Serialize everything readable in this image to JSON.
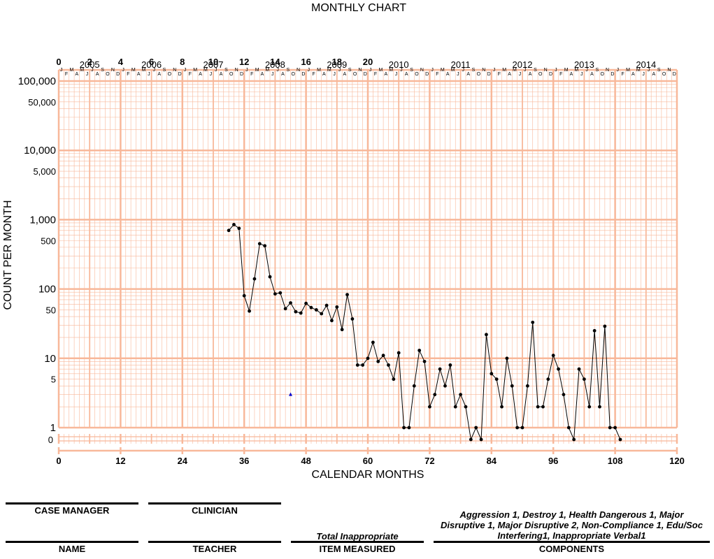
{
  "chart_data": {
    "type": "line",
    "title": "MONTHLY CHART",
    "xlabel": "CALENDAR MONTHS",
    "ylabel": "COUNT PER MONTH",
    "y_scale": "log",
    "xlim": [
      0,
      120
    ],
    "ylim": [
      1,
      100000
    ],
    "zero_row_label": "0",
    "x_ticks_bottom": [
      "0",
      "12",
      "24",
      "36",
      "48",
      "60",
      "72",
      "84",
      "96",
      "108",
      "120"
    ],
    "x_ticks_top": [
      "0",
      "2",
      "4",
      "6",
      "8",
      "10",
      "12",
      "14",
      "16",
      "18",
      "20"
    ],
    "y_tick_labels": [
      {
        "value": 100000,
        "label": "100,000"
      },
      {
        "value": 50000,
        "label": "50,000"
      },
      {
        "value": 10000,
        "label": "10,000"
      },
      {
        "value": 5000,
        "label": "5,000"
      },
      {
        "value": 1000,
        "label": "1,000"
      },
      {
        "value": 500,
        "label": "500"
      },
      {
        "value": 100,
        "label": "100"
      },
      {
        "value": 50,
        "label": "50"
      },
      {
        "value": 10,
        "label": "10"
      },
      {
        "value": 5,
        "label": "5"
      },
      {
        "value": 1,
        "label": "1"
      }
    ],
    "years": [
      "2005",
      "2006",
      "2007",
      "2008",
      "2009",
      "2010",
      "2011",
      "2012",
      "2013",
      "2014"
    ],
    "month_letters": [
      "J",
      "F",
      "M",
      "A",
      "M",
      "J",
      "J",
      "A",
      "S",
      "O",
      "N",
      "D"
    ],
    "series": [
      {
        "values": [
          {
            "x": 33,
            "y": 700
          },
          {
            "x": 34,
            "y": 850
          },
          {
            "x": 35,
            "y": 750
          },
          {
            "x": 36,
            "y": 80
          },
          {
            "x": 37,
            "y": 48
          },
          {
            "x": 38,
            "y": 140
          },
          {
            "x": 39,
            "y": 450
          },
          {
            "x": 40,
            "y": 420
          },
          {
            "x": 41,
            "y": 150
          },
          {
            "x": 42,
            "y": 85
          },
          {
            "x": 43,
            "y": 88
          },
          {
            "x": 44,
            "y": 52
          },
          {
            "x": 45,
            "y": 63
          },
          {
            "x": 46,
            "y": 47
          },
          {
            "x": 47,
            "y": 45
          },
          {
            "x": 48,
            "y": 62
          },
          {
            "x": 49,
            "y": 54
          },
          {
            "x": 50,
            "y": 50
          },
          {
            "x": 51,
            "y": 44
          },
          {
            "x": 52,
            "y": 58
          },
          {
            "x": 53,
            "y": 35
          },
          {
            "x": 54,
            "y": 55
          },
          {
            "x": 55,
            "y": 26
          },
          {
            "x": 56,
            "y": 83
          },
          {
            "x": 57,
            "y": 37
          },
          {
            "x": 58,
            "y": 8
          },
          {
            "x": 59,
            "y": 8
          },
          {
            "x": 60,
            "y": 10
          },
          {
            "x": 61,
            "y": 17
          },
          {
            "x": 62,
            "y": 9
          },
          {
            "x": 63,
            "y": 11
          },
          {
            "x": 64,
            "y": 8
          },
          {
            "x": 65,
            "y": 5
          },
          {
            "x": 66,
            "y": 12
          },
          {
            "x": 67,
            "y": 1
          },
          {
            "x": 68,
            "y": 1
          },
          {
            "x": 69,
            "y": 4
          },
          {
            "x": 70,
            "y": 13
          },
          {
            "x": 71,
            "y": 9
          },
          {
            "x": 72,
            "y": 2
          },
          {
            "x": 73,
            "y": 3
          },
          {
            "x": 74,
            "y": 7
          },
          {
            "x": 75,
            "y": 4
          },
          {
            "x": 76,
            "y": 8
          },
          {
            "x": 77,
            "y": 2
          },
          {
            "x": 78,
            "y": 3
          },
          {
            "x": 79,
            "y": 2
          },
          {
            "x": 80,
            "y": 0
          },
          {
            "x": 81,
            "y": 1
          },
          {
            "x": 82,
            "y": 0
          },
          {
            "x": 83,
            "y": 22
          },
          {
            "x": 84,
            "y": 6
          },
          {
            "x": 85,
            "y": 5
          },
          {
            "x": 86,
            "y": 2
          },
          {
            "x": 87,
            "y": 10
          },
          {
            "x": 88,
            "y": 4
          },
          {
            "x": 89,
            "y": 1
          },
          {
            "x": 90,
            "y": 1
          },
          {
            "x": 91,
            "y": 4
          },
          {
            "x": 92,
            "y": 33
          },
          {
            "x": 93,
            "y": 2
          },
          {
            "x": 94,
            "y": 2
          },
          {
            "x": 95,
            "y": 5
          },
          {
            "x": 96,
            "y": 11
          },
          {
            "x": 97,
            "y": 7
          },
          {
            "x": 98,
            "y": 3
          },
          {
            "x": 99,
            "y": 1
          },
          {
            "x": 100,
            "y": 0
          },
          {
            "x": 101,
            "y": 7
          },
          {
            "x": 102,
            "y": 5
          },
          {
            "x": 103,
            "y": 2
          },
          {
            "x": 104,
            "y": 25
          },
          {
            "x": 105,
            "y": 2
          },
          {
            "x": 106,
            "y": 29
          },
          {
            "x": 107,
            "y": 1
          },
          {
            "x": 108,
            "y": 1
          },
          {
            "x": 109,
            "y": 0
          }
        ]
      }
    ],
    "markers": [
      {
        "x": 45,
        "y": 3,
        "shape": "triangle",
        "color": "#0000cc"
      }
    ],
    "colors": {
      "grid": "#f8b89a",
      "line": "#000000"
    }
  },
  "footer": {
    "case_manager": "CASE MANAGER",
    "clinician": "CLINICIAN",
    "name": "NAME",
    "teacher": "TEACHER",
    "item_measured_label": "ITEM MEASURED",
    "components_label": "COMPONENTS",
    "item_measured_value": "Total Inappropriate",
    "components_value": "Aggression 1, Destroy 1, Health Dangerous 1, Major Disruptive 1, Major Disruptive 2, Non-Compliance 1, Edu/Soc Interfering1, Inappropriate Verbal1"
  }
}
